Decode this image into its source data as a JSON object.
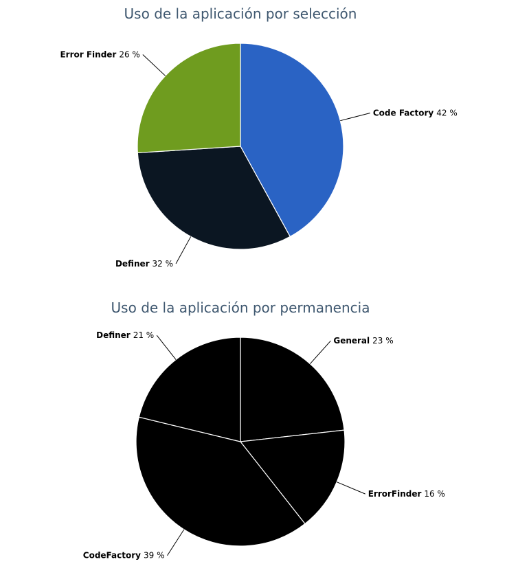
{
  "chart_data": [
    {
      "type": "pie",
      "title": "Uso de la aplicación por selección",
      "categories": [
        "Code Factory",
        "Definer",
        "Error Finder"
      ],
      "values": [
        42,
        32,
        26
      ],
      "value_labels": [
        "42 %",
        "32 %",
        "26 %"
      ],
      "colors": [
        "#2a63c4",
        "#0b1622",
        "#6f9c1f"
      ]
    },
    {
      "type": "pie",
      "title": "Uso de la aplicación por permanencia",
      "categories": [
        "General",
        "ErrorFinder",
        "CodeFactory",
        "Definer"
      ],
      "values": [
        23,
        16,
        39,
        21
      ],
      "value_labels": [
        "23 %",
        "16 %",
        "39 %",
        "21 %"
      ],
      "colors": [
        "#000000",
        "#000000",
        "#000000",
        "#000000"
      ]
    }
  ]
}
